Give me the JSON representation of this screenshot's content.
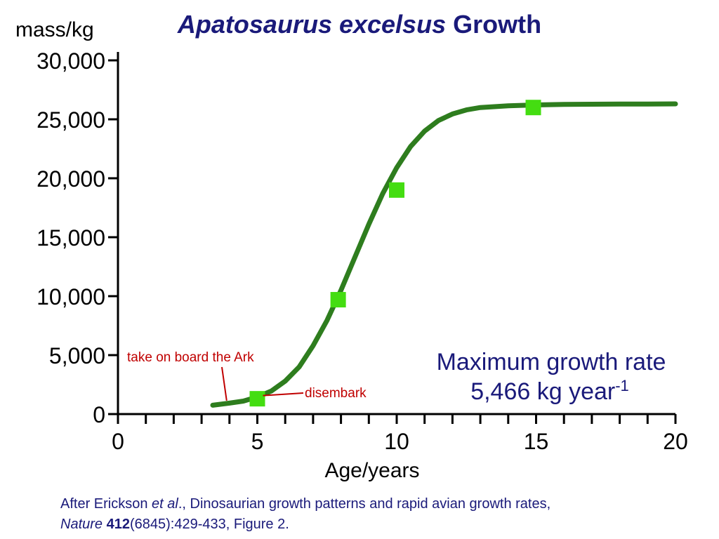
{
  "title": {
    "italic_part": "Apatosaurus excelsus",
    "plain_part": " Growth"
  },
  "chart_data": {
    "type": "line",
    "title": "Apatosaurus excelsus Growth",
    "ylabel": "mass/kg",
    "xlabel": "Age/years",
    "xlim": [
      0,
      20
    ],
    "ylim": [
      0,
      30000
    ],
    "x_ticks": [
      0,
      5,
      10,
      15,
      20
    ],
    "x_tick_labels": [
      "0",
      "5",
      "10",
      "15",
      "20"
    ],
    "x_minor_step": 1,
    "y_ticks": [
      0,
      5000,
      10000,
      15000,
      20000,
      25000,
      30000
    ],
    "y_tick_labels": [
      "0",
      "5,000",
      "10,000",
      "15,000",
      "20,000",
      "25,000",
      "30,000"
    ],
    "grid": false,
    "series": [
      {
        "kind": "points",
        "color": "#44dd11",
        "marker": "square",
        "x": [
          5,
          7.9,
          10,
          14.9
        ],
        "y": [
          1300,
          9700,
          19000,
          26000
        ]
      },
      {
        "kind": "fitted-curve",
        "color": "#2e7d1e",
        "x": [
          3.4,
          4,
          4.5,
          5,
          5.5,
          6,
          6.5,
          7,
          7.5,
          8,
          8.5,
          9,
          9.5,
          10,
          10.5,
          11,
          11.5,
          12,
          12.5,
          13,
          14,
          15,
          16,
          17,
          18,
          19,
          20
        ],
        "y": [
          750,
          930,
          1100,
          1450,
          1950,
          2800,
          4000,
          5800,
          7950,
          10500,
          13300,
          16100,
          18700,
          20900,
          22700,
          24000,
          24900,
          25450,
          25800,
          26000,
          26150,
          26220,
          26260,
          26280,
          26290,
          26300,
          26310
        ]
      }
    ],
    "annotations": [
      {
        "text": "take on board the Ark",
        "target_x": 4,
        "target_y": 900
      },
      {
        "text": "disembark",
        "target_x": 5,
        "target_y": 1450
      }
    ]
  },
  "rate_box": {
    "line1": "Maximum growth rate",
    "line2_main": "5,466 kg year",
    "line2_sup": "-1"
  },
  "citation": {
    "line1_pre": "After Erickson ",
    "line1_italic": "et al",
    "line1_post": "., Dinosaurian growth patterns and rapid avian growth rates,",
    "line2_italic": "Nature",
    "line2_bold": "412",
    "line2_post": "(6845):429-433, Figure 2."
  },
  "colors": {
    "title": "#1a1a7a",
    "annotation": "#c00000",
    "curve": "#2e7d1e",
    "points": "#44dd11"
  }
}
